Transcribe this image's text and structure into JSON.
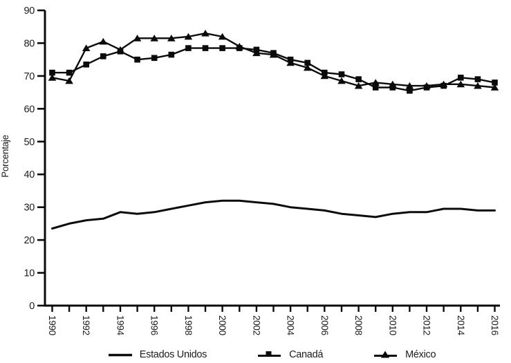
{
  "chart_data": {
    "type": "line",
    "title": "",
    "ylabel": "Porcentaje",
    "xlabel": "",
    "xlim": [
      1990,
      2016
    ],
    "ylim": [
      0,
      90
    ],
    "grid": false,
    "legend_position": "bottom",
    "line_color": "#0b0b0b",
    "text_color": "#1c1c1c",
    "y_ticks": [
      0,
      10,
      20,
      30,
      40,
      50,
      60,
      70,
      80,
      90
    ],
    "x": [
      1990,
      1991,
      1992,
      1993,
      1994,
      1995,
      1996,
      1997,
      1998,
      1999,
      2000,
      2001,
      2002,
      2003,
      2004,
      2005,
      2006,
      2007,
      2008,
      2009,
      2010,
      2011,
      2012,
      2013,
      2014,
      2015,
      2016
    ],
    "x_axis_labels": [
      "1990",
      "1992",
      "1994",
      "1996",
      "1998",
      "2000",
      "2002",
      "2004",
      "2006",
      "2008",
      "2010",
      "2012",
      "2014",
      "2016"
    ],
    "series": [
      {
        "name": "Estados Unidos",
        "marker": "none",
        "values": [
          23.5,
          25,
          26,
          26.5,
          28.5,
          28,
          28.5,
          29.5,
          30.5,
          31.5,
          32,
          32,
          31.5,
          31,
          30,
          29.5,
          29,
          28,
          27.5,
          27,
          28,
          28.5,
          28.5,
          29.5,
          29.5,
          29,
          29
        ]
      },
      {
        "name": "Canadá",
        "marker": "square",
        "values": [
          71,
          71,
          73.5,
          76,
          77.5,
          75,
          75.5,
          76.5,
          78.5,
          78.5,
          78.5,
          78.5,
          78,
          77,
          75,
          74,
          71,
          70.5,
          69,
          66.5,
          66.5,
          65.5,
          66.5,
          67,
          69.5,
          69,
          68
        ]
      },
      {
        "name": "México",
        "marker": "triangle",
        "values": [
          69.5,
          68.5,
          78.5,
          80.5,
          78,
          81.5,
          81.5,
          81.5,
          82,
          83,
          82,
          79,
          77,
          76.5,
          74,
          72.5,
          70,
          68.5,
          67,
          68,
          67.5,
          67,
          67,
          67.5,
          67.5,
          67,
          66.5
        ]
      }
    ]
  }
}
